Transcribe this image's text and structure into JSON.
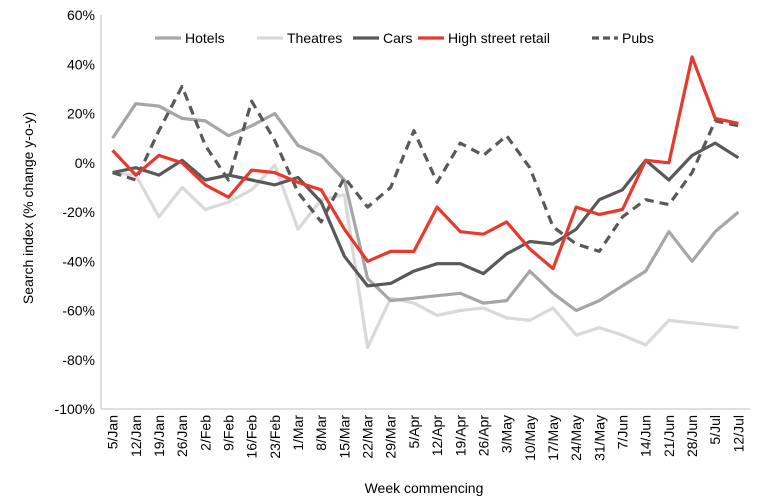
{
  "chart_data": {
    "type": "line",
    "title": "",
    "xlabel": "Week commencing",
    "ylabel": "Search index (% change y-o-y)",
    "ylim": [
      -100,
      60
    ],
    "y_ticks": [
      60,
      40,
      20,
      0,
      -20,
      -40,
      -60,
      -80,
      -100
    ],
    "y_tick_labels": [
      "60%",
      "40%",
      "20%",
      "0%",
      "-20%",
      "-40%",
      "-60%",
      "-80%",
      "-100%"
    ],
    "grid": false,
    "legend_position": "top",
    "categories": [
      "5/Jan",
      "12/Jan",
      "19/Jan",
      "26/Jan",
      "2/Feb",
      "9/Feb",
      "16/Feb",
      "23/Feb",
      "1/Mar",
      "8/Mar",
      "15/Mar",
      "22/Mar",
      "29/Mar",
      "5/Apr",
      "12/Apr",
      "19/Apr",
      "26/Apr",
      "3/May",
      "10/May",
      "17/May",
      "24/May",
      "31/May",
      "7/Jun",
      "14/Jun",
      "21/Jun",
      "28/Jun",
      "5/Jul",
      "12/Jul"
    ],
    "series": [
      {
        "name": "Hotels",
        "color": "#a6a6a6",
        "dash": "solid",
        "values": [
          10,
          24,
          23,
          18,
          17,
          11,
          15,
          20,
          7,
          3,
          -7,
          -47,
          -56,
          -55,
          -54,
          -53,
          -57,
          -56,
          -44,
          -53,
          -60,
          -56,
          -50,
          -44,
          -28,
          -40,
          -28,
          -20
        ]
      },
      {
        "name": "Theatres",
        "color": "#d9d9d9",
        "dash": "solid",
        "values": [
          -4,
          -5,
          -22,
          -10,
          -19,
          -16,
          -11,
          -1,
          -27,
          -15,
          -13,
          -75,
          -55,
          -57,
          -62,
          -60,
          -59,
          -63,
          -64,
          -59,
          -70,
          -67,
          -70,
          -74,
          -64,
          -65,
          -66,
          -67
        ]
      },
      {
        "name": "Cars",
        "color": "#595959",
        "dash": "solid",
        "values": [
          -4,
          -2,
          -5,
          1,
          -7,
          -5,
          -7,
          -9,
          -6,
          -16,
          -38,
          -50,
          -49,
          -44,
          -41,
          -41,
          -45,
          -37,
          -32,
          -33,
          -27,
          -15,
          -11,
          1,
          -7,
          3,
          8,
          2
        ]
      },
      {
        "name": "High street retail",
        "color": "#e8392d",
        "dash": "solid",
        "values": [
          5,
          -5,
          3,
          0,
          -9,
          -14,
          -3,
          -4,
          -8,
          -11,
          -27,
          -40,
          -36,
          -36,
          -18,
          -28,
          -29,
          -24,
          -35,
          -43,
          -18,
          -21,
          -19,
          1,
          0,
          43,
          18,
          16
        ]
      },
      {
        "name": "Pubs",
        "color": "#595959",
        "dash": "dashed",
        "values": [
          -4,
          -7,
          13,
          31,
          7,
          -7,
          25,
          9,
          -12,
          -24,
          -6,
          -18,
          -10,
          13,
          -8,
          8,
          3,
          11,
          -2,
          -26,
          -33,
          -36,
          -22,
          -15,
          -17,
          -4,
          17,
          15
        ]
      }
    ]
  }
}
